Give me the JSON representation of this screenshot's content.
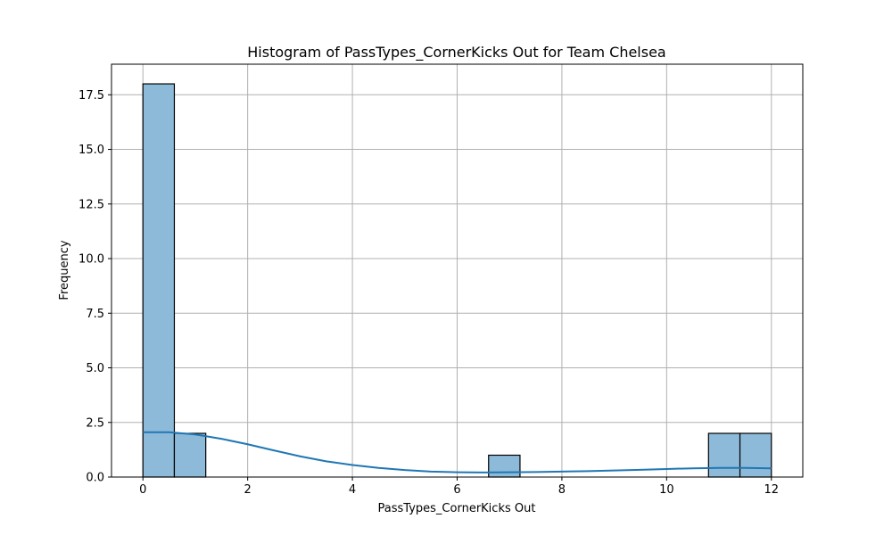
{
  "chart_data": {
    "type": "bar",
    "title": "Histogram of PassTypes_CornerKicks Out for Team Chelsea",
    "xlabel": "PassTypes_CornerKicks Out",
    "ylabel": "Frequency",
    "xlim": [
      -0.6,
      12.6
    ],
    "ylim": [
      0,
      18.9
    ],
    "xticks": [
      0,
      2,
      4,
      6,
      8,
      10,
      12
    ],
    "xtick_labels": [
      "0",
      "2",
      "4",
      "6",
      "8",
      "10",
      "12"
    ],
    "yticks": [
      0,
      2.5,
      5,
      7.5,
      10,
      12.5,
      15,
      17.5
    ],
    "ytick_labels": [
      "0.0",
      "2.5",
      "5.0",
      "7.5",
      "10.0",
      "12.5",
      "15.0",
      "17.5"
    ],
    "grid": true,
    "bins": [
      {
        "x0": 0.0,
        "x1": 0.6,
        "count": 18
      },
      {
        "x0": 0.6,
        "x1": 1.2,
        "count": 2
      },
      {
        "x0": 6.6,
        "x1": 7.2,
        "count": 1
      },
      {
        "x0": 10.8,
        "x1": 11.4,
        "count": 2
      },
      {
        "x0": 11.4,
        "x1": 12.0,
        "count": 2
      }
    ],
    "kde": {
      "x": [
        0,
        0.5,
        1,
        1.5,
        2,
        2.5,
        3,
        3.5,
        4,
        4.5,
        5,
        5.5,
        6,
        6.5,
        7,
        7.5,
        8,
        8.5,
        9,
        9.5,
        10,
        10.5,
        11,
        11.5,
        12
      ],
      "y": [
        2.05,
        2.05,
        1.95,
        1.75,
        1.5,
        1.22,
        0.95,
        0.72,
        0.55,
        0.42,
        0.32,
        0.25,
        0.22,
        0.21,
        0.22,
        0.23,
        0.25,
        0.27,
        0.3,
        0.33,
        0.37,
        0.4,
        0.42,
        0.42,
        0.4
      ]
    },
    "colors": {
      "bar_fill": "#8ebad9",
      "bar_edge": "#000000",
      "kde_line": "#1f77b4",
      "grid": "#b0b0b0"
    }
  }
}
